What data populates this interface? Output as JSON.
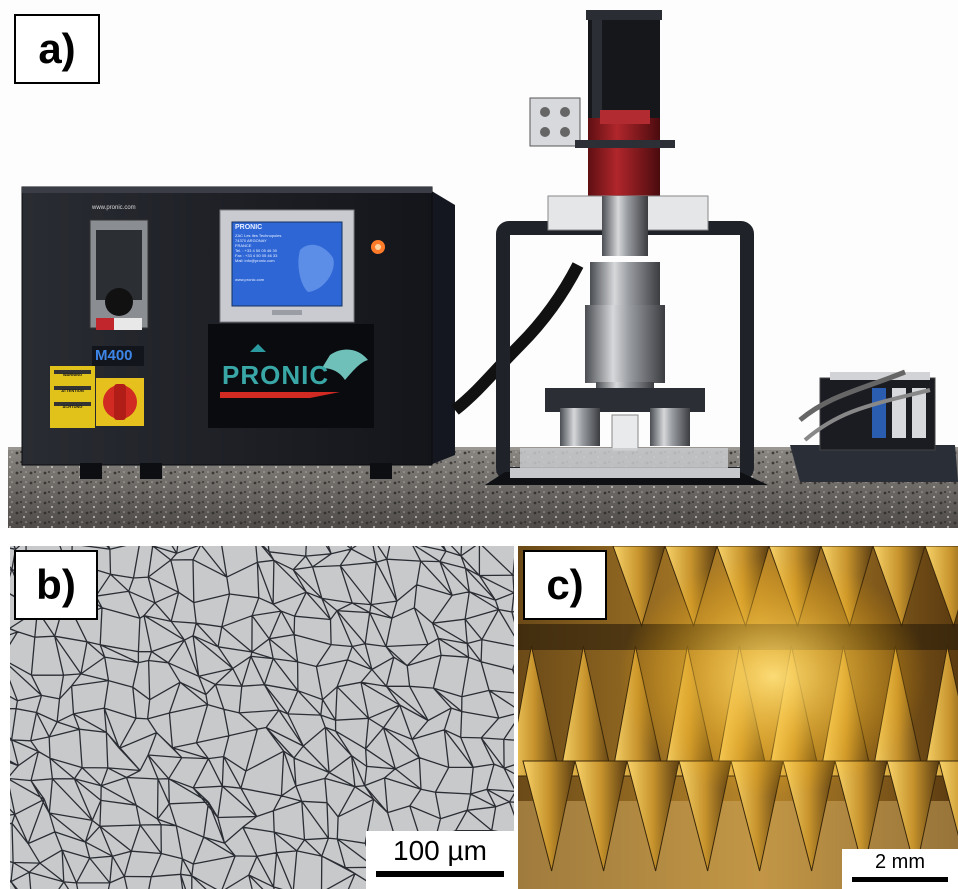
{
  "panels": {
    "a": {
      "label": "a)",
      "machine": {
        "website": "www.pronic.com",
        "model": "M400",
        "logo": "PRONIC",
        "screen": {
          "title": "PRONIC",
          "lines": [
            "ZAC Les Iles Technopoles",
            "74370 ARGONAY",
            "FRANCE",
            "Tel. : +33 4 50 05 46 30",
            "Fax : +33 4 50 05 46 33",
            "Mail: info@pronic.com"
          ],
          "footer": "www.pronic.com"
        },
        "warning_labels": [
          "WARNING",
          "ATTENTION",
          "ACHTUNG"
        ]
      }
    },
    "b": {
      "label": "b)",
      "scalebar": "100 µm"
    },
    "c": {
      "label": "c)",
      "scalebar": "2 mm"
    }
  },
  "colors": {
    "machine_body": "#1d1f26",
    "frame": "#22252c",
    "red_spindle": "#8a1a1e",
    "granite": "#6d6a66",
    "micrograph_bg": "#c7c9cb",
    "grain_boundary": "#2a2d33",
    "gold_light": "#f5c640",
    "gold_dark": "#5a3d12"
  }
}
